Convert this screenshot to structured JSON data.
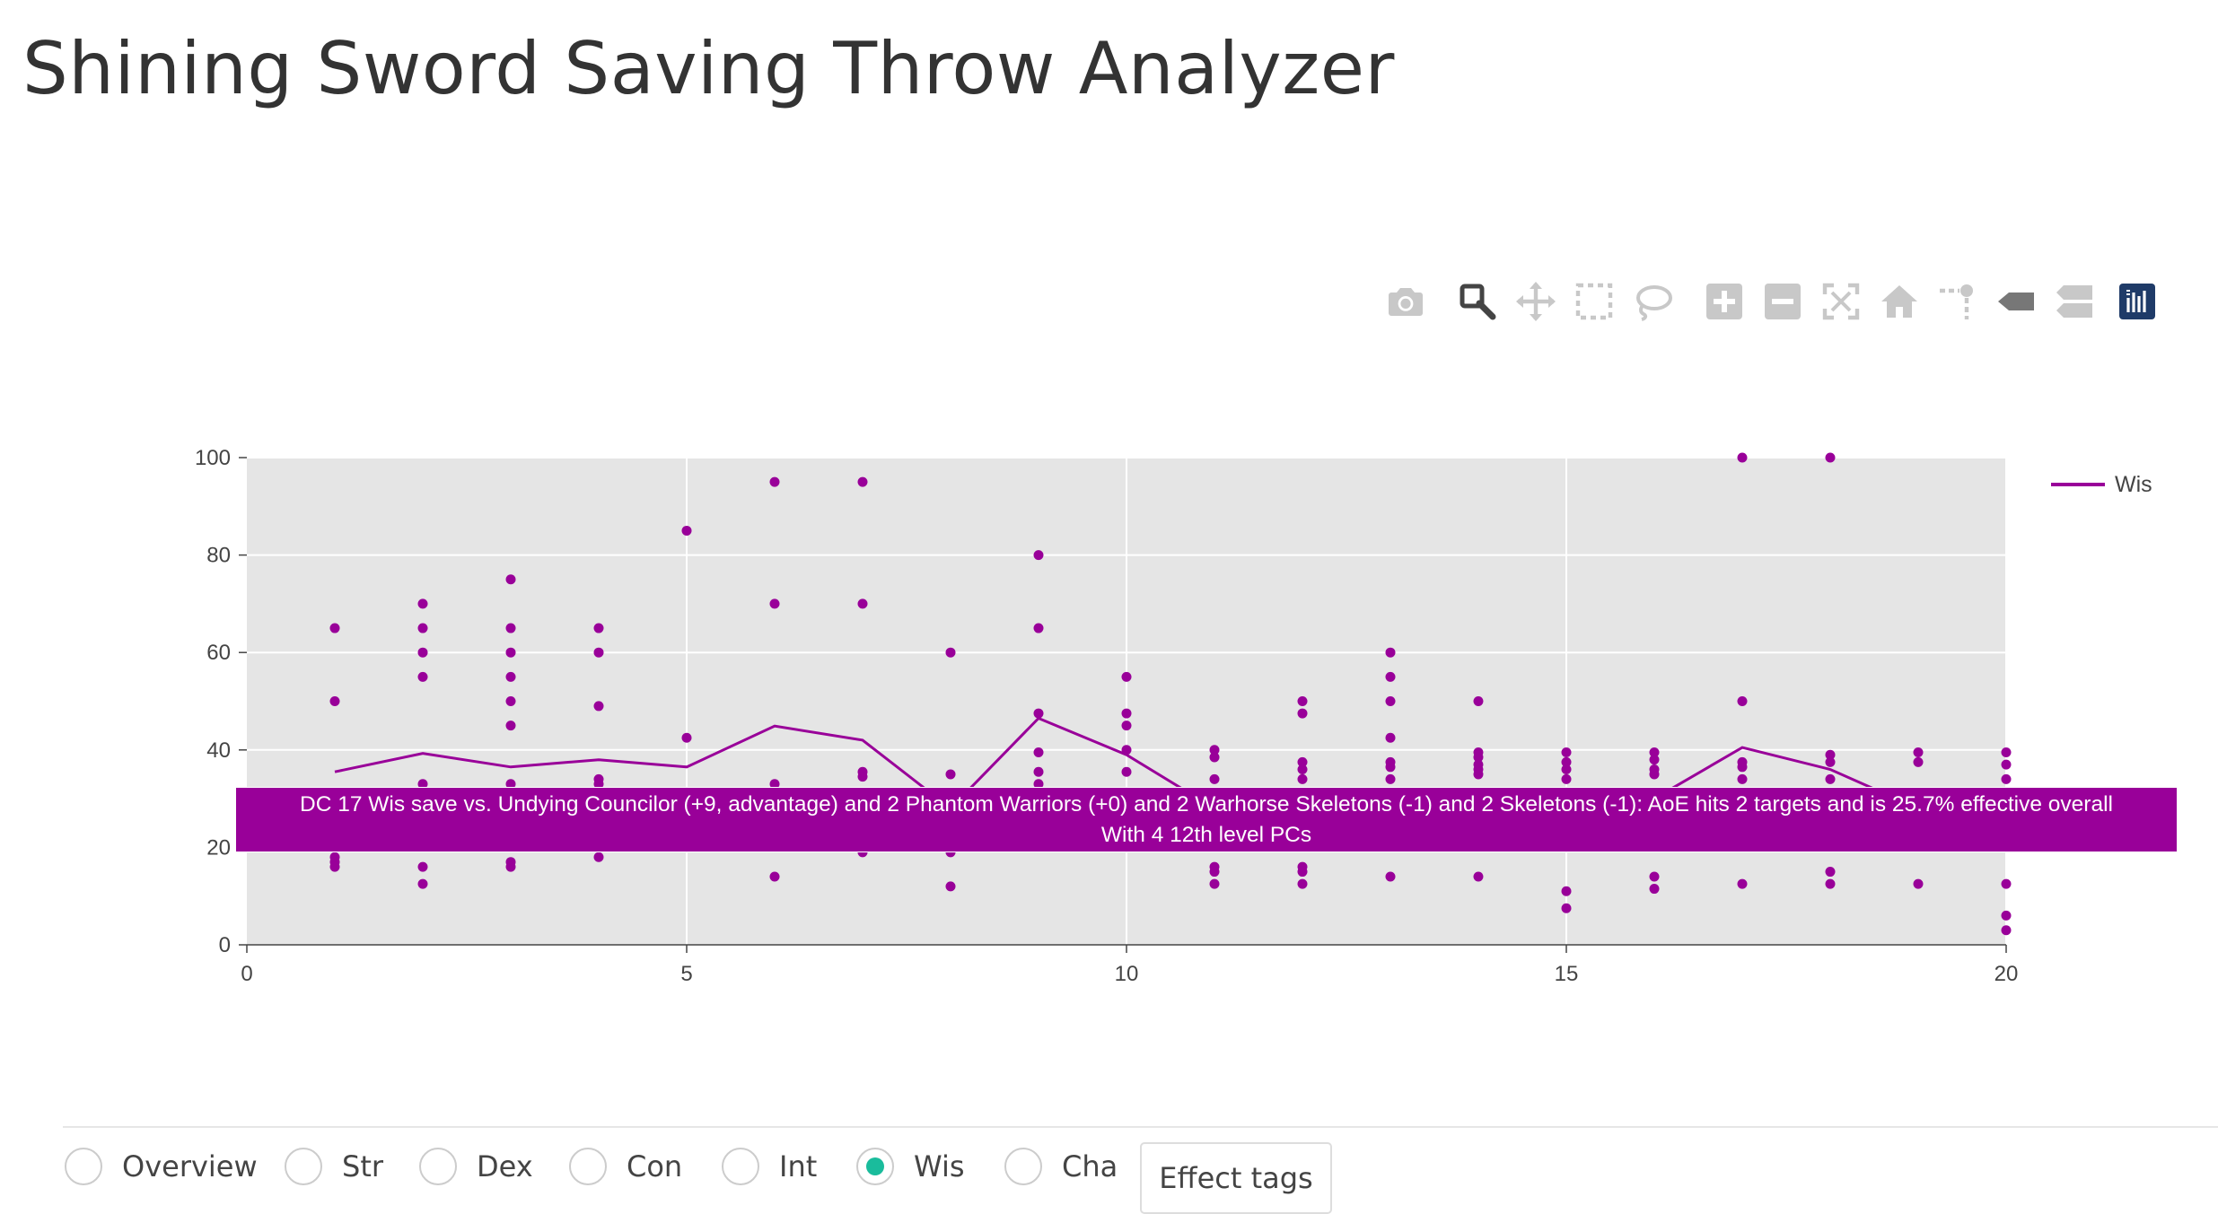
{
  "header": {
    "title": "Shining Sword Saving Throw Analyzer"
  },
  "modebar": {
    "buttons": [
      {
        "name": "camera-icon",
        "title": "Download plot as a png"
      },
      {
        "name": "zoom-icon",
        "title": "Zoom"
      },
      {
        "name": "pan-icon",
        "title": "Pan"
      },
      {
        "name": "box-select-icon",
        "title": "Box Select"
      },
      {
        "name": "lasso-select-icon",
        "title": "Lasso Select"
      },
      {
        "name": "zoom-in-icon",
        "title": "Zoom in"
      },
      {
        "name": "zoom-out-icon",
        "title": "Zoom out"
      },
      {
        "name": "autoscale-icon",
        "title": "Autoscale"
      },
      {
        "name": "reset-axes-icon",
        "title": "Reset axes"
      },
      {
        "name": "spike-lines-icon",
        "title": "Toggle Spike Lines"
      },
      {
        "name": "hover-closest-icon",
        "title": "Show closest data on hover"
      },
      {
        "name": "hover-compare-icon",
        "title": "Compare data on hover"
      },
      {
        "name": "plotly-logo-icon",
        "title": "Produced with Plotly"
      }
    ]
  },
  "colors": {
    "series": "#990099",
    "plot_bg": "#e5e5e5",
    "grid": "#ffffff",
    "accent": "#1abc9c"
  },
  "chart_data": {
    "type": "line",
    "xlim": [
      0,
      20
    ],
    "ylim": [
      0,
      100
    ],
    "x_ticks": [
      0,
      5,
      10,
      15,
      20
    ],
    "y_ticks": [
      0,
      20,
      40,
      60,
      80,
      100
    ],
    "grid": true,
    "legend_position": "top-right",
    "series": [
      {
        "name": "Wis",
        "mode": "lines",
        "x": [
          1,
          2,
          3,
          4,
          5,
          6,
          7,
          8,
          9,
          10,
          11,
          12,
          13,
          14,
          15,
          16,
          17,
          18,
          19,
          20
        ],
        "y": [
          35.5,
          39.3,
          36.5,
          38,
          36.5,
          44.9,
          42,
          28,
          46.5,
          39,
          28,
          28,
          28,
          28,
          28,
          30,
          40.5,
          36,
          28,
          28
        ]
      },
      {
        "mode": "markers",
        "x": [
          1,
          1,
          1,
          1,
          1,
          2,
          2,
          2,
          2,
          2,
          2,
          2,
          3,
          3,
          3,
          3,
          3,
          3,
          3,
          3,
          3,
          3,
          4,
          4,
          4,
          4,
          4,
          4,
          5,
          5,
          6,
          6,
          6,
          6,
          7,
          7,
          7,
          7,
          7,
          8,
          8,
          8,
          8,
          9,
          9,
          9,
          9,
          9,
          9,
          10,
          10,
          10,
          10,
          10,
          11,
          11,
          11,
          11,
          11,
          11,
          12,
          12,
          12,
          12,
          12,
          12,
          12,
          12,
          12,
          13,
          13,
          13,
          13,
          13,
          13,
          13,
          13,
          14,
          14,
          14,
          14,
          14,
          14,
          14,
          15,
          15,
          15,
          15,
          15,
          15,
          16,
          16,
          16,
          16,
          16,
          16,
          17,
          17,
          17,
          17,
          17,
          17,
          18,
          18,
          18,
          18,
          18,
          18,
          19,
          19,
          19,
          20,
          20,
          20,
          20,
          20,
          20
        ],
        "y": [
          65,
          50,
          18,
          17,
          16,
          70,
          65,
          60,
          55,
          33,
          16,
          12.5,
          75,
          65,
          60,
          55,
          50,
          45,
          33,
          30,
          17,
          16,
          65,
          60,
          49,
          34,
          33,
          18,
          85,
          42.5,
          95,
          70,
          33,
          14,
          95,
          70,
          35.5,
          34.5,
          19,
          60,
          35,
          19,
          12,
          80,
          65,
          47.5,
          39.5,
          35.5,
          33,
          55,
          47.5,
          45,
          40,
          35.5,
          40,
          38.5,
          34,
          16,
          15,
          12.5,
          50,
          47.5,
          37.5,
          36,
          34,
          20,
          16,
          15,
          12.5,
          60,
          55,
          50,
          42.5,
          37.5,
          36.5,
          34,
          14,
          50,
          39.5,
          38.5,
          37,
          36,
          35,
          14,
          39.5,
          37.5,
          36,
          34,
          11,
          7.5,
          39.5,
          38,
          36,
          35,
          14,
          11.5,
          100,
          50,
          37.5,
          36.5,
          34,
          12.5,
          100,
          39,
          37.5,
          34,
          15,
          12.5,
          39.5,
          37.5,
          12.5,
          39.5,
          37,
          34,
          12.5,
          6,
          3
        ]
      }
    ]
  },
  "hover_label": {
    "line1": "DC 17 Wis save vs. Undying Councilor (+9, advantage) and 2 Phantom Warriors (+0) and 2 Warhorse Skeletons (-1) and 2 Skeletons (-1): AoE hits 2 targets and is 25.7% effective overall",
    "line2": "With 4 12th level PCs"
  },
  "tabs": {
    "selected": "Wis",
    "items": [
      {
        "label": "Overview",
        "name": "tab-overview"
      },
      {
        "label": "Str",
        "name": "tab-str"
      },
      {
        "label": "Dex",
        "name": "tab-dex"
      },
      {
        "label": "Con",
        "name": "tab-con"
      },
      {
        "label": "Int",
        "name": "tab-int"
      },
      {
        "label": "Wis",
        "name": "tab-wis"
      },
      {
        "label": "Cha",
        "name": "tab-cha"
      }
    ]
  },
  "effect_tags_button": {
    "label": "Effect tags"
  }
}
